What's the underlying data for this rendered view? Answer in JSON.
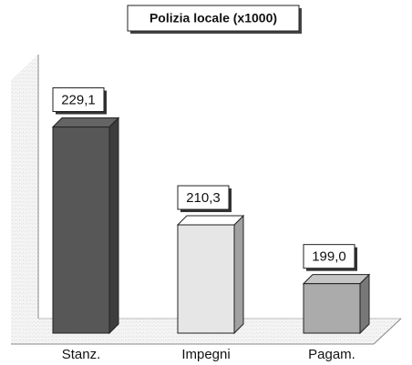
{
  "chart_data": {
    "type": "bar",
    "title": "Polizia locale (x1000)",
    "categories": [
      "Stanz.",
      "Impegni",
      "Pagam."
    ],
    "values": [
      229.1,
      210.3,
      199.0
    ],
    "value_labels": [
      "229,1",
      "210,3",
      "199,0"
    ],
    "colors": [
      "#575757",
      "#e6e6e6",
      "#ababab"
    ],
    "ylim": [
      189.5,
      243
    ]
  }
}
